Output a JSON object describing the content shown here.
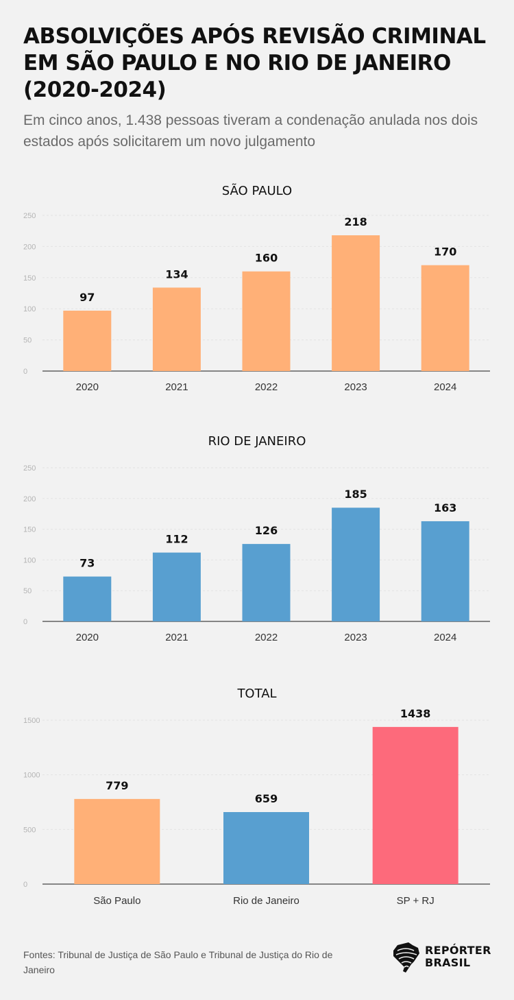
{
  "header": {
    "title": "ABSOLVIÇÕES APÓS REVISÃO CRIMINAL EM SÃO PAULO E NO RIO DE JANEIRO (2020-2024)",
    "subtitle": "Em cinco anos, 1.438 pessoas tiveram a condenação anulada nos dois estados após solicitarem um novo julgamento"
  },
  "chart_data": [
    {
      "type": "bar",
      "title": "SÃO PAULO",
      "categories": [
        "2020",
        "2021",
        "2022",
        "2023",
        "2024"
      ],
      "values": [
        97,
        134,
        160,
        218,
        170
      ],
      "ylim": [
        0,
        250
      ],
      "yticks": [
        0,
        50,
        100,
        150,
        200,
        250
      ],
      "color": "#ffb077",
      "grid": true,
      "xlabel": "",
      "ylabel": ""
    },
    {
      "type": "bar",
      "title": "RIO DE JANEIRO",
      "categories": [
        "2020",
        "2021",
        "2022",
        "2023",
        "2024"
      ],
      "values": [
        73,
        112,
        126,
        185,
        163
      ],
      "ylim": [
        0,
        250
      ],
      "yticks": [
        0,
        50,
        100,
        150,
        200,
        250
      ],
      "color": "#589fd0",
      "grid": true,
      "xlabel": "",
      "ylabel": ""
    },
    {
      "type": "bar",
      "title": "TOTAL",
      "categories": [
        "São Paulo",
        "Rio de Janeiro",
        "SP + RJ"
      ],
      "values": [
        779,
        659,
        1438
      ],
      "colors": [
        "#ffb077",
        "#589fd0",
        "#fd6a7b"
      ],
      "ylim": [
        0,
        1500
      ],
      "yticks": [
        0,
        500,
        1000,
        1500
      ],
      "grid": true,
      "xlabel": "",
      "ylabel": ""
    }
  ],
  "footer": {
    "source": "Fontes: Tribunal de Justiça de São Paulo e Tribunal de Justiça do Rio de Janeiro",
    "logo_line1": "REPÓRTER",
    "logo_line2": "BRASIL"
  }
}
